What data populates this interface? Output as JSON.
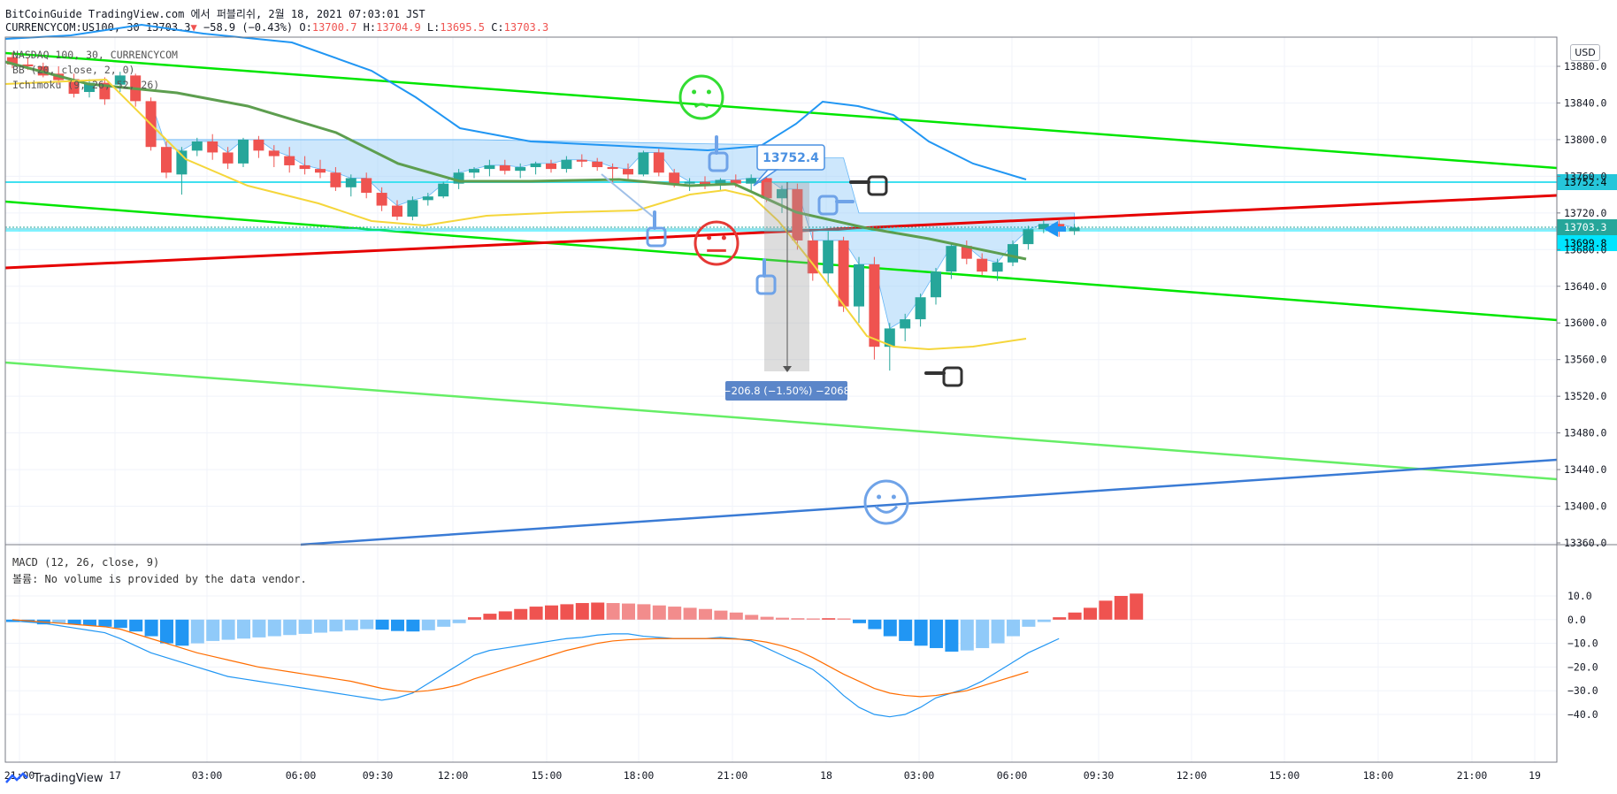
{
  "header": {
    "line1": "BitCoinGuide TradingView.com 에서 퍼블리쉬, 2월 18, 2021 07:03:01 JST",
    "symbol": "CURRENCYCOM:US100, 30",
    "last": "13703.3",
    "change": "−58.9 (−0.43%)",
    "o_label": "O:",
    "o_val": "13700.7",
    "h_label": "H:",
    "h_val": "13704.9",
    "l_label": "L:",
    "l_val": "13695.5",
    "c_label": "C:",
    "c_val": "13703.3"
  },
  "legend": {
    "symbol": "NASDAQ 100, 30, CURRENCYCOM",
    "bb": "BB (20, close, 2, 0)",
    "ichimoku": "Ichimoku (9, 26, 52, 26)",
    "macd": "MACD (12, 26, close, 9)",
    "volume": "볼륨: No volume is provided by the data vendor."
  },
  "currency": "USD",
  "footer": {
    "brand": "TradingView"
  },
  "annotations": {
    "callout": "13752.4",
    "measure": "−206.8 (−1.50%) −2068"
  },
  "price_badges": [
    {
      "value": "13752.4",
      "color": "#26c6da"
    },
    {
      "value": "13703.3",
      "color": "#26a69a"
    },
    {
      "value": "13699.8",
      "color": "#00e5ff"
    }
  ],
  "chart_data": [
    {
      "type": "candlestick",
      "title": "NASDAQ 100, 30, CURRENCYCOM",
      "ylim": [
        13360,
        13900
      ],
      "y_ticks": [
        "13880.0",
        "13840.0",
        "13800.0",
        "13760.0",
        "13720.0",
        "13680.0",
        "13640.0",
        "13600.0",
        "13560.0",
        "13520.0",
        "13480.0",
        "13440.0",
        "13400.0",
        "13360.0"
      ],
      "x_ticks": [
        "21:00",
        "17",
        "03:00",
        "06:00",
        "09:30",
        "12:00",
        "15:00",
        "18:00",
        "21:00",
        "18",
        "03:00",
        "06:00",
        "09:30",
        "12:00",
        "15:00",
        "18:00",
        "21:00",
        "19"
      ],
      "candles": [
        [
          13890,
          13895,
          13878,
          13882
        ],
        [
          13882,
          13890,
          13876,
          13880
        ],
        [
          13880,
          13884,
          13868,
          13870
        ],
        [
          13872,
          13880,
          13860,
          13865
        ],
        [
          13866,
          13872,
          13846,
          13850
        ],
        [
          13852,
          13866,
          13846,
          13862
        ],
        [
          13862,
          13868,
          13838,
          13844
        ],
        [
          13860,
          13874,
          13852,
          13870
        ],
        [
          13870,
          13872,
          13836,
          13842
        ],
        [
          13842,
          13846,
          13788,
          13792
        ],
        [
          13792,
          13798,
          13758,
          13764
        ],
        [
          13762,
          13792,
          13740,
          13788
        ],
        [
          13788,
          13802,
          13782,
          13798
        ],
        [
          13798,
          13806,
          13778,
          13786
        ],
        [
          13786,
          13792,
          13768,
          13774
        ],
        [
          13774,
          13802,
          13770,
          13800
        ],
        [
          13800,
          13804,
          13780,
          13788
        ],
        [
          13788,
          13794,
          13770,
          13782
        ],
        [
          13782,
          13792,
          13764,
          13772
        ],
        [
          13772,
          13782,
          13762,
          13768
        ],
        [
          13768,
          13778,
          13758,
          13764
        ],
        [
          13764,
          13770,
          13744,
          13748
        ],
        [
          13748,
          13762,
          13738,
          13758
        ],
        [
          13758,
          13764,
          13736,
          13742
        ],
        [
          13742,
          13748,
          13722,
          13728
        ],
        [
          13728,
          13734,
          13712,
          13716
        ],
        [
          13716,
          13738,
          13712,
          13734
        ],
        [
          13734,
          13742,
          13728,
          13738
        ],
        [
          13738,
          13754,
          13736,
          13752
        ],
        [
          13752,
          13768,
          13746,
          13764
        ],
        [
          13764,
          13770,
          13758,
          13768
        ],
        [
          13768,
          13778,
          13760,
          13772
        ],
        [
          13772,
          13778,
          13762,
          13766
        ],
        [
          13766,
          13774,
          13758,
          13770
        ],
        [
          13770,
          13776,
          13762,
          13774
        ],
        [
          13774,
          13778,
          13764,
          13768
        ],
        [
          13768,
          13782,
          13764,
          13778
        ],
        [
          13778,
          13784,
          13770,
          13776
        ],
        [
          13776,
          13780,
          13766,
          13770
        ],
        [
          13770,
          13774,
          13752,
          13768
        ],
        [
          13768,
          13774,
          13756,
          13762
        ],
        [
          13762,
          13788,
          13760,
          13786
        ],
        [
          13786,
          13790,
          13760,
          13764
        ],
        [
          13764,
          13768,
          13748,
          13752
        ],
        [
          13752,
          13758,
          13744,
          13754
        ],
        [
          13754,
          13760,
          13746,
          13750
        ],
        [
          13750,
          13758,
          13744,
          13756
        ],
        [
          13756,
          13762,
          13748,
          13752
        ],
        [
          13752,
          13762,
          13744,
          13758
        ],
        [
          13758,
          13764,
          13732,
          13736
        ],
        [
          13736,
          13750,
          13720,
          13746
        ],
        [
          13746,
          13752,
          13680,
          13690
        ],
        [
          13690,
          13700,
          13646,
          13654
        ],
        [
          13654,
          13700,
          13640,
          13690
        ],
        [
          13690,
          13694,
          13612,
          13618
        ],
        [
          13618,
          13672,
          13600,
          13664
        ],
        [
          13664,
          13672,
          13560,
          13574
        ],
        [
          13574,
          13600,
          13548,
          13594
        ],
        [
          13594,
          13610,
          13580,
          13604
        ],
        [
          13604,
          13632,
          13596,
          13628
        ],
        [
          13628,
          13660,
          13620,
          13656
        ],
        [
          13656,
          13688,
          13648,
          13684
        ],
        [
          13684,
          13690,
          13664,
          13670
        ],
        [
          13670,
          13676,
          13652,
          13656
        ],
        [
          13656,
          13670,
          13646,
          13666
        ],
        [
          13666,
          13690,
          13662,
          13686
        ],
        [
          13686,
          13706,
          13680,
          13702
        ],
        [
          13702,
          13712,
          13698,
          13708
        ],
        [
          13708,
          13712,
          13694,
          13700
        ],
        [
          13700,
          13708,
          13696,
          13704
        ]
      ]
    },
    {
      "type": "line",
      "title": "MACD (12, 26, close, 9)",
      "ylim": [
        -45,
        15
      ],
      "y_ticks": [
        "10.0",
        "0.0",
        "−10.0",
        "−20.0",
        "−30.0",
        "−40.0"
      ],
      "series": [
        {
          "name": "histogram",
          "color": "#2196f3",
          "values": [
            -1,
            -1,
            -2,
            -1.5,
            -2,
            -2.5,
            -3,
            -3.5,
            -5,
            -7,
            -10,
            -11,
            -10,
            -9,
            -8.5,
            -8,
            -7.5,
            -7,
            -6.5,
            -6,
            -5.5,
            -5,
            -4.5,
            -4,
            -4.2,
            -4.8,
            -5,
            -4.5,
            -3,
            -1.5,
            1,
            2.5,
            3.5,
            4.5,
            5.5,
            6,
            6.5,
            7,
            7.2,
            7,
            6.8,
            6.5,
            6,
            5.5,
            5,
            4.5,
            3.8,
            3,
            2,
            1.2,
            0.8,
            0.6,
            0.5,
            0.6,
            0.5,
            -1.5,
            -4,
            -7,
            -9,
            -11,
            -12,
            -13.5,
            -13,
            -12,
            -10,
            -7,
            -3,
            -1,
            1,
            3,
            5,
            8,
            10,
            11
          ]
        },
        {
          "name": "MACD",
          "color": "#2196f3",
          "values": [
            -0.5,
            -1,
            -1.5,
            -2.5,
            -3.5,
            -4.5,
            -5.5,
            -8,
            -11,
            -14,
            -16,
            -18,
            -20,
            -22,
            -24,
            -25,
            -26,
            -27,
            -28,
            -29,
            -30,
            -31,
            -32,
            -33,
            -34,
            -33,
            -31,
            -27,
            -23,
            -19,
            -15,
            -13,
            -12,
            -11,
            -10,
            -9,
            -8,
            -7.5,
            -6.5,
            -6,
            -6,
            -7,
            -7.5,
            -8,
            -8,
            -8,
            -7.5,
            -8,
            -9,
            -12,
            -15,
            -18,
            -21,
            -26,
            -32,
            -37,
            -40,
            -41,
            -40,
            -37,
            -33,
            -31,
            -29,
            -26,
            -22,
            -18,
            -14,
            -11,
            -8
          ]
        },
        {
          "name": "Signal",
          "color": "#ff6d00",
          "values": [
            0,
            -0.5,
            -1,
            -1.5,
            -2,
            -2.5,
            -3,
            -4,
            -6,
            -8,
            -10,
            -12,
            -14,
            -15.5,
            -17,
            -18.5,
            -20,
            -21,
            -22,
            -23,
            -24,
            -25,
            -26,
            -27.5,
            -29,
            -30,
            -30.5,
            -30,
            -29,
            -27.5,
            -25,
            -23,
            -21,
            -19,
            -17,
            -15,
            -13,
            -11.5,
            -10,
            -9,
            -8.5,
            -8.2,
            -8,
            -8,
            -8,
            -8,
            -8,
            -8.2,
            -8.5,
            -9.5,
            -11,
            -13,
            -16,
            -19.5,
            -23,
            -26,
            -29,
            -31,
            -32,
            -32.5,
            -32,
            -31,
            -30,
            -28,
            -26,
            -24,
            -22
          ]
        }
      ]
    }
  ]
}
